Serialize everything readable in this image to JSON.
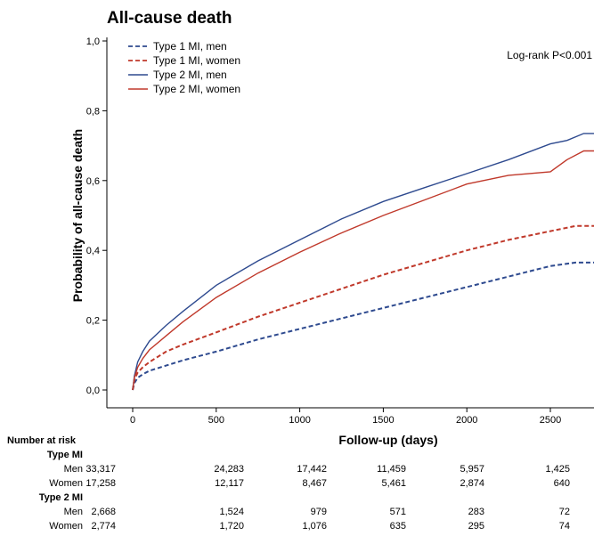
{
  "chart_data": {
    "type": "line",
    "title": "All-cause death",
    "xlabel": "Follow-up (days)",
    "ylabel": "Probability of all-cause death",
    "xlim": [
      0,
      2800
    ],
    "ylim": [
      0,
      1.0
    ],
    "xticks": [
      0,
      500,
      1000,
      1500,
      2000,
      2500
    ],
    "yticks": [
      "0,0",
      "0,2",
      "0,4",
      "0,6",
      "0,8",
      "1,0"
    ],
    "annotation": "Log-rank P<0.001",
    "legend_position": "top-left",
    "series": [
      {
        "name": "Type 1 MI, men",
        "color": "#2e4a8f",
        "dash": true,
        "x": [
          0,
          10,
          30,
          60,
          100,
          200,
          300,
          500,
          750,
          1000,
          1250,
          1500,
          1750,
          2000,
          2250,
          2500,
          2650,
          2800
        ],
        "y": [
          0,
          0.02,
          0.035,
          0.045,
          0.055,
          0.07,
          0.085,
          0.11,
          0.145,
          0.175,
          0.205,
          0.235,
          0.265,
          0.295,
          0.325,
          0.355,
          0.365,
          0.365
        ]
      },
      {
        "name": "Type 1 MI, women",
        "color": "#c0392b",
        "dash": true,
        "x": [
          0,
          10,
          30,
          60,
          100,
          200,
          300,
          500,
          750,
          1000,
          1250,
          1500,
          1750,
          2000,
          2250,
          2500,
          2650,
          2800
        ],
        "y": [
          0,
          0.03,
          0.05,
          0.065,
          0.08,
          0.11,
          0.13,
          0.165,
          0.21,
          0.25,
          0.29,
          0.33,
          0.365,
          0.4,
          0.43,
          0.455,
          0.47,
          0.47
        ]
      },
      {
        "name": "Type 2 MI, men",
        "color": "#2e4a8f",
        "dash": false,
        "x": [
          0,
          10,
          30,
          60,
          100,
          200,
          300,
          500,
          750,
          1000,
          1250,
          1500,
          1750,
          2000,
          2250,
          2500,
          2600,
          2700,
          2800
        ],
        "y": [
          0,
          0.04,
          0.08,
          0.11,
          0.14,
          0.185,
          0.225,
          0.3,
          0.37,
          0.43,
          0.49,
          0.54,
          0.58,
          0.62,
          0.66,
          0.705,
          0.715,
          0.735,
          0.735
        ]
      },
      {
        "name": "Type 2 MI, women",
        "color": "#c0392b",
        "dash": false,
        "x": [
          0,
          10,
          30,
          60,
          100,
          200,
          300,
          500,
          750,
          1000,
          1250,
          1500,
          1750,
          2000,
          2250,
          2500,
          2600,
          2700,
          2800
        ],
        "y": [
          0,
          0.035,
          0.065,
          0.09,
          0.115,
          0.155,
          0.195,
          0.265,
          0.335,
          0.395,
          0.45,
          0.5,
          0.545,
          0.59,
          0.615,
          0.625,
          0.66,
          0.685,
          0.685
        ]
      }
    ]
  },
  "risk_table": {
    "heading": "Number at risk",
    "groups": [
      {
        "label": "Type MI",
        "rows": [
          {
            "label": "Men",
            "values": [
              "33,317",
              "24,283",
              "17,442",
              "11,459",
              "5,957",
              "1,425"
            ]
          },
          {
            "label": "Women",
            "values": [
              "17,258",
              "12,117",
              "8,467",
              "5,461",
              "2,874",
              "640"
            ]
          }
        ]
      },
      {
        "label": "Type 2 MI",
        "rows": [
          {
            "label": "Men",
            "values": [
              "2,668",
              "1,524",
              "979",
              "571",
              "283",
              "72"
            ]
          },
          {
            "label": "Women",
            "values": [
              "2,774",
              "1,720",
              "1,076",
              "635",
              "295",
              "74"
            ]
          }
        ]
      }
    ]
  }
}
